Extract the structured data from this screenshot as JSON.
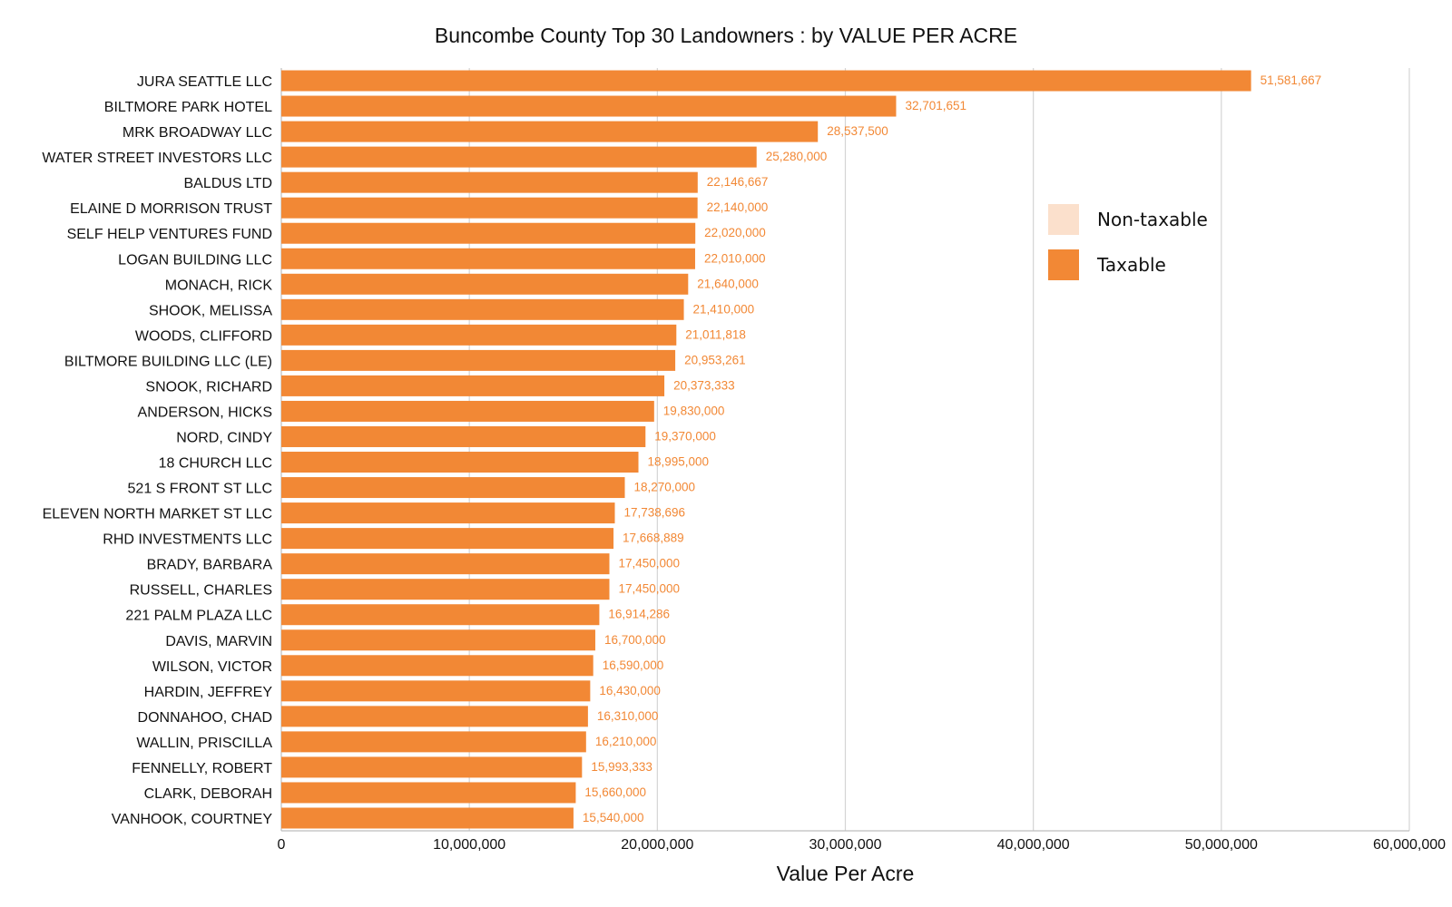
{
  "chart_data": {
    "type": "bar",
    "orientation": "horizontal",
    "title": "Buncombe County Top 30 Landowners : by VALUE PER ACRE",
    "xlabel": "Value Per Acre",
    "ylabel": "",
    "xlim": [
      0,
      60000000
    ],
    "x_ticks": [
      0,
      10000000,
      20000000,
      30000000,
      40000000,
      50000000,
      60000000
    ],
    "x_tick_labels": [
      "0",
      "10,000,000",
      "20,000,000",
      "30,000,000",
      "40,000,000",
      "50,000,000",
      "60,000,000"
    ],
    "grid": true,
    "legend_position": "right",
    "legend": [
      {
        "name": "Non-taxable",
        "color": "#fbe0cc"
      },
      {
        "name": "Taxable",
        "color": "#f28835"
      }
    ],
    "categories": [
      "JURA SEATTLE LLC",
      "BILTMORE PARK HOTEL",
      "MRK BROADWAY LLC",
      "WATER STREET INVESTORS LLC",
      "BALDUS LTD",
      "ELAINE D MORRISON TRUST",
      "SELF HELP VENTURES FUND",
      "LOGAN BUILDING LLC",
      "MONACH, RICK",
      "SHOOK, MELISSA",
      "WOODS, CLIFFORD",
      "BILTMORE BUILDING LLC (LE)",
      "SNOOK, RICHARD",
      "ANDERSON, HICKS",
      "NORD, CINDY",
      "18 CHURCH LLC",
      "521 S FRONT ST LLC",
      "ELEVEN NORTH MARKET ST LLC",
      "RHD INVESTMENTS LLC",
      "BRADY, BARBARA",
      "RUSSELL, CHARLES",
      "221 PALM PLAZA LLC",
      "DAVIS, MARVIN",
      "WILSON, VICTOR",
      "HARDIN, JEFFREY",
      "DONNAHOO, CHAD",
      "WALLIN, PRISCILLA",
      "FENNELLY, ROBERT",
      "CLARK, DEBORAH",
      "VANHOOK, COURTNEY"
    ],
    "series": [
      {
        "name": "Taxable",
        "color": "#f28835",
        "values": [
          51581667,
          32701651,
          28537500,
          25280000,
          22146667,
          22140000,
          22020000,
          22010000,
          21640000,
          21410000,
          21011818,
          20953261,
          20373333,
          19830000,
          19370000,
          18995000,
          18270000,
          17738696,
          17668889,
          17450000,
          17450000,
          16914286,
          16700000,
          16590000,
          16430000,
          16310000,
          16210000,
          15993333,
          15660000,
          15540000
        ],
        "labels": [
          "51,581,667",
          "32,701,651",
          "28,537,500",
          "25,280,000",
          "22,146,667",
          "22,140,000",
          "22,020,000",
          "22,010,000",
          "21,640,000",
          "21,410,000",
          "21,011,818",
          "20,953,261",
          "20,373,333",
          "19,830,000",
          "19,370,000",
          "18,995,000",
          "18,270,000",
          "17,738,696",
          "17,668,889",
          "17,450,000",
          "17,450,000",
          "16,914,286",
          "16,700,000",
          "16,590,000",
          "16,430,000",
          "16,310,000",
          "16,210,000",
          "15,993,333",
          "15,660,000",
          "15,540,000"
        ]
      }
    ]
  }
}
